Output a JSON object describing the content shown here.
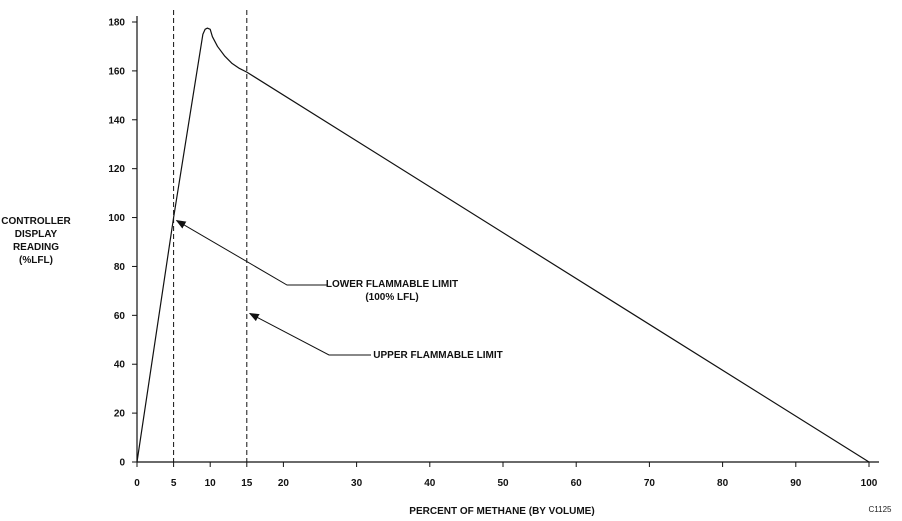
{
  "chart_data": {
    "type": "line",
    "xlabel": "PERCENT OF METHANE (BY VOLUME)",
    "ylabel": [
      "CONTROLLER",
      "DISPLAY",
      "READING",
      "(%LFL)"
    ],
    "xlim": [
      0,
      100
    ],
    "ylim": [
      0,
      180
    ],
    "x_ticks": [
      0,
      5,
      10,
      15,
      20,
      30,
      40,
      50,
      60,
      70,
      80,
      90,
      100
    ],
    "y_ticks": [
      0,
      20,
      40,
      60,
      80,
      100,
      120,
      140,
      160,
      180
    ],
    "grid": false,
    "series": [
      {
        "x": [
          0,
          5,
          9,
          9.3,
          9.6,
          10,
          10.3,
          11,
          12,
          13,
          14,
          15,
          100
        ],
        "y": [
          0,
          100,
          175,
          177,
          177.5,
          177,
          174,
          170,
          166,
          163,
          161,
          159.5,
          0
        ]
      }
    ],
    "vertical_reference_lines": [
      5,
      15
    ],
    "annotations": [
      {
        "lines": [
          "LOWER FLAMMABLE LIMIT",
          "(100% LFL)"
        ],
        "points_to": {
          "x": 5,
          "y": 100
        }
      },
      {
        "lines": [
          "UPPER FLAMMABLE LIMIT"
        ],
        "points_to": {
          "x": 15,
          "y": 62
        }
      }
    ]
  },
  "figure_id": "C1125"
}
